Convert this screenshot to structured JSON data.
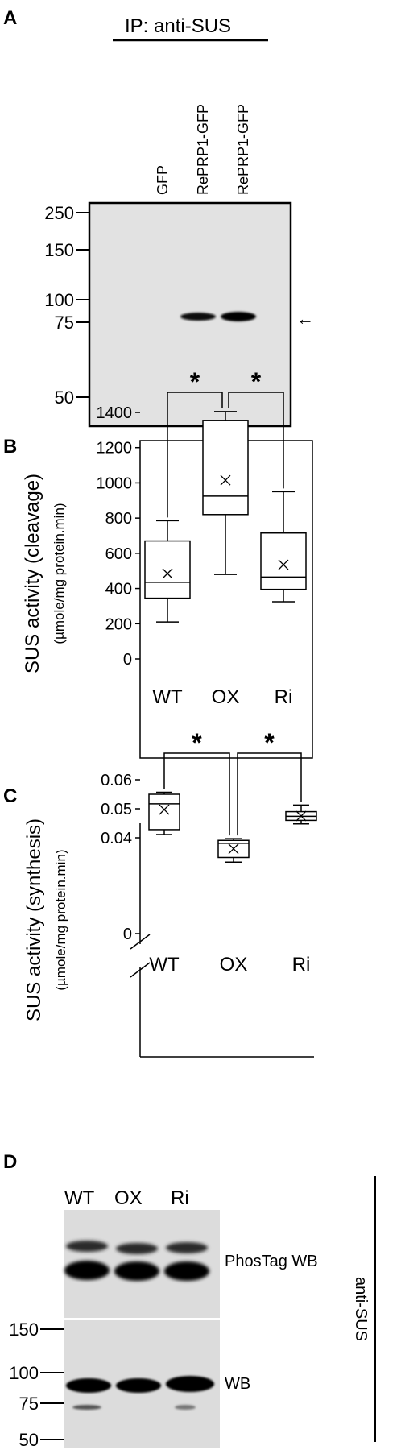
{
  "panel_a": {
    "letter": "A",
    "ip_label": "IP: anti-SUS",
    "lanes": [
      "GFP",
      "RePRP1-GFP",
      "RePRP1-GFP"
    ],
    "mw_markers": [
      "250",
      "150",
      "100",
      "75",
      "50"
    ],
    "arrow_glyph": "←"
  },
  "panel_d": {
    "letter": "D",
    "lanes": [
      "WT",
      "OX",
      "Ri"
    ],
    "mw_markers": [
      "150",
      "100",
      "75",
      "50"
    ],
    "blot_labels": [
      "PhosTag WB",
      "WB"
    ],
    "antibody_label": "anti-SUS"
  },
  "chart_data": [
    {
      "type": "box",
      "panel": "B",
      "title": "",
      "ylabel": "SUS activity (cleavage)",
      "ylabel2": "(µmole/mg protein.min)",
      "categories": [
        "WT",
        "OX",
        "Ri"
      ],
      "ylim": [
        0,
        1400
      ],
      "yticks": [
        0,
        200,
        400,
        600,
        800,
        1000,
        1200,
        1400
      ],
      "ytick_labels": [
        "0",
        "200",
        "400",
        "600",
        "800",
        "1000",
        "1200",
        "1400"
      ],
      "boxes": [
        {
          "min": 210,
          "q1": 345,
          "median": 435,
          "q3": 670,
          "max": 785,
          "mean": 485
        },
        {
          "min": 480,
          "q1": 820,
          "median": 925,
          "q3": 1355,
          "max": 1405,
          "mean": 1015
        },
        {
          "min": 325,
          "q1": 395,
          "median": 465,
          "q3": 715,
          "max": 950,
          "mean": 535
        }
      ],
      "significance": [
        {
          "from": "WT",
          "to": "OX",
          "mark": "*"
        },
        {
          "from": "OX",
          "to": "Ri",
          "mark": "*"
        }
      ]
    },
    {
      "type": "box",
      "panel": "C",
      "title": "",
      "ylabel": "SUS activity (synthesis)",
      "ylabel2": "(µmole/mg protein.min)",
      "categories": [
        "WT",
        "OX",
        "Ri"
      ],
      "ylim": [
        0.03,
        0.06
      ],
      "axis_break": true,
      "yticks": [
        0,
        0.04,
        0.05,
        0.06
      ],
      "ytick_labels": [
        "0",
        "0.04",
        "0.05",
        "0.06"
      ],
      "boxes": [
        {
          "min": 0.0411,
          "q1": 0.0428,
          "median": 0.0517,
          "q3": 0.055,
          "max": 0.0557,
          "mean": 0.0497
        },
        {
          "min": 0.0316,
          "q1": 0.0332,
          "median": 0.0381,
          "q3": 0.0391,
          "max": 0.0397,
          "mean": 0.0362
        },
        {
          "min": 0.0448,
          "q1": 0.046,
          "median": 0.0474,
          "q3": 0.049,
          "max": 0.0513,
          "mean": 0.0475
        }
      ],
      "significance": [
        {
          "from": "WT",
          "to": "OX",
          "mark": "*"
        },
        {
          "from": "OX",
          "to": "Ri",
          "mark": "*"
        }
      ]
    }
  ]
}
